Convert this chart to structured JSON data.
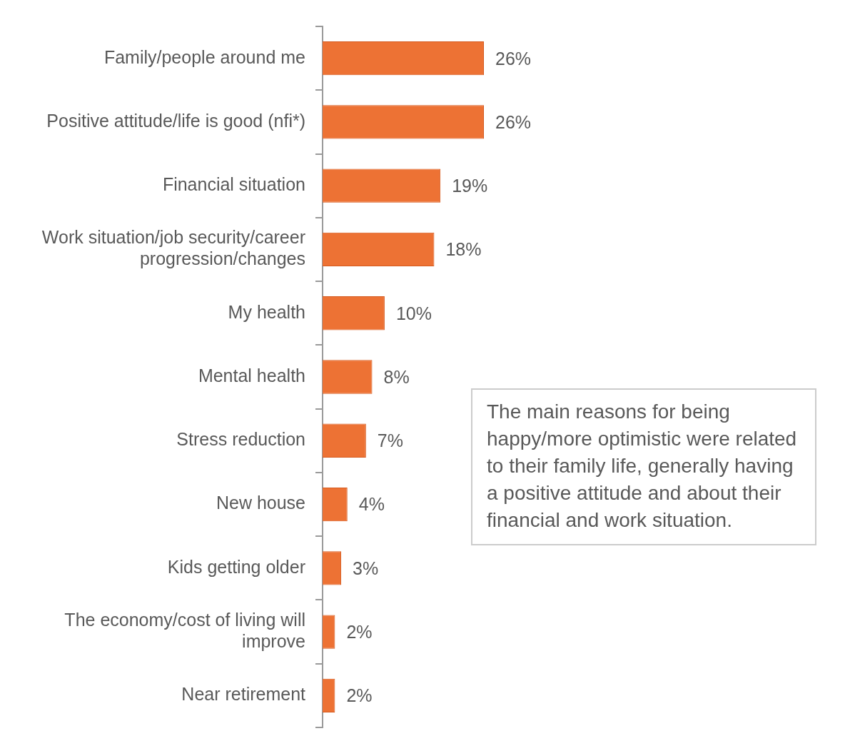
{
  "chart_data": {
    "type": "bar",
    "orientation": "horizontal",
    "categories": [
      "Family/people around me",
      "Positive attitude/life is good (nfi*)",
      "Financial situation",
      "Work situation/job security/career progression/changes",
      "My health",
      "Mental health",
      "Stress reduction",
      "New house",
      "Kids getting older",
      "The economy/cost of living will improve",
      "Near retirement"
    ],
    "values": [
      26,
      26,
      19,
      18,
      10,
      8,
      7,
      4,
      3,
      2,
      2
    ],
    "value_labels": [
      "26%",
      "26%",
      "19%",
      "18%",
      "10%",
      "8%",
      "7%",
      "4%",
      "3%",
      "2%",
      "2%"
    ],
    "color": "#ed7234",
    "annotations": [
      "The main reasons for being happy/more optimistic were related to their family life, generally having a positive attitude and about their financial and work situation."
    ]
  }
}
